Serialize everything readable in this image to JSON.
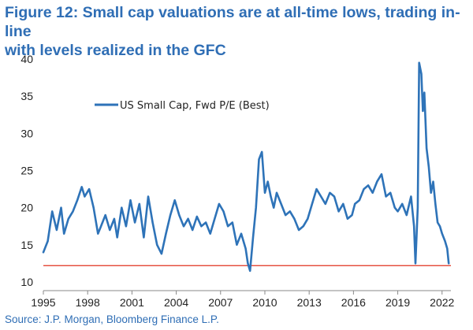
{
  "title_line1": "Figure 12: Small cap valuations are at all-time lows, trading in-line",
  "title_line2": "with levels realized in the GFC",
  "source": "Source: J.P. Morgan, Bloomberg Finance L.P.",
  "colors": {
    "title": "#2f6eb5",
    "series": "#2e73b8",
    "reference": "#e0301e"
  },
  "chart_data": {
    "type": "line",
    "title": "Figure 12: Small cap valuations are at all-time lows, trading in-line with levels realized in the GFC",
    "xlabel": "",
    "ylabel": "",
    "xlim": [
      1995,
      2022.6
    ],
    "ylim": [
      10,
      40
    ],
    "y_ticks": [
      10,
      15,
      20,
      25,
      30,
      35,
      40
    ],
    "x_ticks": [
      1995,
      1998,
      2001,
      2004,
      2007,
      2010,
      2013,
      2016,
      2019,
      2022
    ],
    "grid": false,
    "legend_position": "upper-left",
    "reference_line": {
      "y": 12.2,
      "color": "#e0301e"
    },
    "series": [
      {
        "name": "US Small Cap, Fwd P/E (Best)",
        "x": [
          1995.0,
          1995.3,
          1995.6,
          1995.9,
          1996.2,
          1996.4,
          1996.7,
          1997.0,
          1997.3,
          1997.6,
          1997.8,
          1998.1,
          1998.4,
          1998.7,
          1998.9,
          1999.2,
          1999.5,
          1999.8,
          2000.0,
          2000.3,
          2000.6,
          2000.9,
          2001.2,
          2001.5,
          2001.8,
          2002.1,
          2002.4,
          2002.7,
          2003.0,
          2003.3,
          2003.6,
          2003.9,
          2004.2,
          2004.5,
          2004.8,
          2005.1,
          2005.4,
          2005.7,
          2006.0,
          2006.3,
          2006.6,
          2006.9,
          2007.2,
          2007.5,
          2007.8,
          2008.1,
          2008.4,
          2008.7,
          2008.85,
          2009.0,
          2009.2,
          2009.4,
          2009.6,
          2009.8,
          2010.0,
          2010.2,
          2010.4,
          2010.6,
          2010.8,
          2011.1,
          2011.4,
          2011.7,
          2012.0,
          2012.3,
          2012.6,
          2012.9,
          2013.2,
          2013.5,
          2013.8,
          2014.1,
          2014.4,
          2014.7,
          2015.0,
          2015.3,
          2015.6,
          2015.9,
          2016.1,
          2016.4,
          2016.7,
          2017.0,
          2017.3,
          2017.6,
          2017.9,
          2018.2,
          2018.5,
          2018.8,
          2019.0,
          2019.3,
          2019.6,
          2019.9,
          2020.1,
          2020.2,
          2020.35,
          2020.45,
          2020.6,
          2020.7,
          2020.8,
          2020.95,
          2021.1,
          2021.25,
          2021.4,
          2021.55,
          2021.7,
          2021.85,
          2022.0,
          2022.2,
          2022.35,
          2022.45
        ],
        "values": [
          14.0,
          15.5,
          19.5,
          17.0,
          20.0,
          16.5,
          18.5,
          19.5,
          21.0,
          22.8,
          21.5,
          22.5,
          20.0,
          16.5,
          17.5,
          19.0,
          17.0,
          18.5,
          16.0,
          20.0,
          17.5,
          21.0,
          18.0,
          20.5,
          16.0,
          21.5,
          18.0,
          15.0,
          13.8,
          16.5,
          19.0,
          21.0,
          19.0,
          17.5,
          18.5,
          17.0,
          18.8,
          17.5,
          18.0,
          16.5,
          18.5,
          20.5,
          19.5,
          17.5,
          18.0,
          15.0,
          16.5,
          14.5,
          12.5,
          11.5,
          16.0,
          20.0,
          26.5,
          27.5,
          22.0,
          23.5,
          21.5,
          20.0,
          22.0,
          20.5,
          19.0,
          19.5,
          18.5,
          17.0,
          17.5,
          18.5,
          20.5,
          22.5,
          21.5,
          20.5,
          22.0,
          21.5,
          19.5,
          20.5,
          18.5,
          19.0,
          20.5,
          21.0,
          22.5,
          23.0,
          22.0,
          23.5,
          24.5,
          21.5,
          22.0,
          20.0,
          19.5,
          20.5,
          19.0,
          21.5,
          17.5,
          12.5,
          20.0,
          39.5,
          38.0,
          33.0,
          35.5,
          28.0,
          25.5,
          22.0,
          23.5,
          20.5,
          18.0,
          17.5,
          16.5,
          15.5,
          14.5,
          12.5
        ]
      }
    ]
  }
}
